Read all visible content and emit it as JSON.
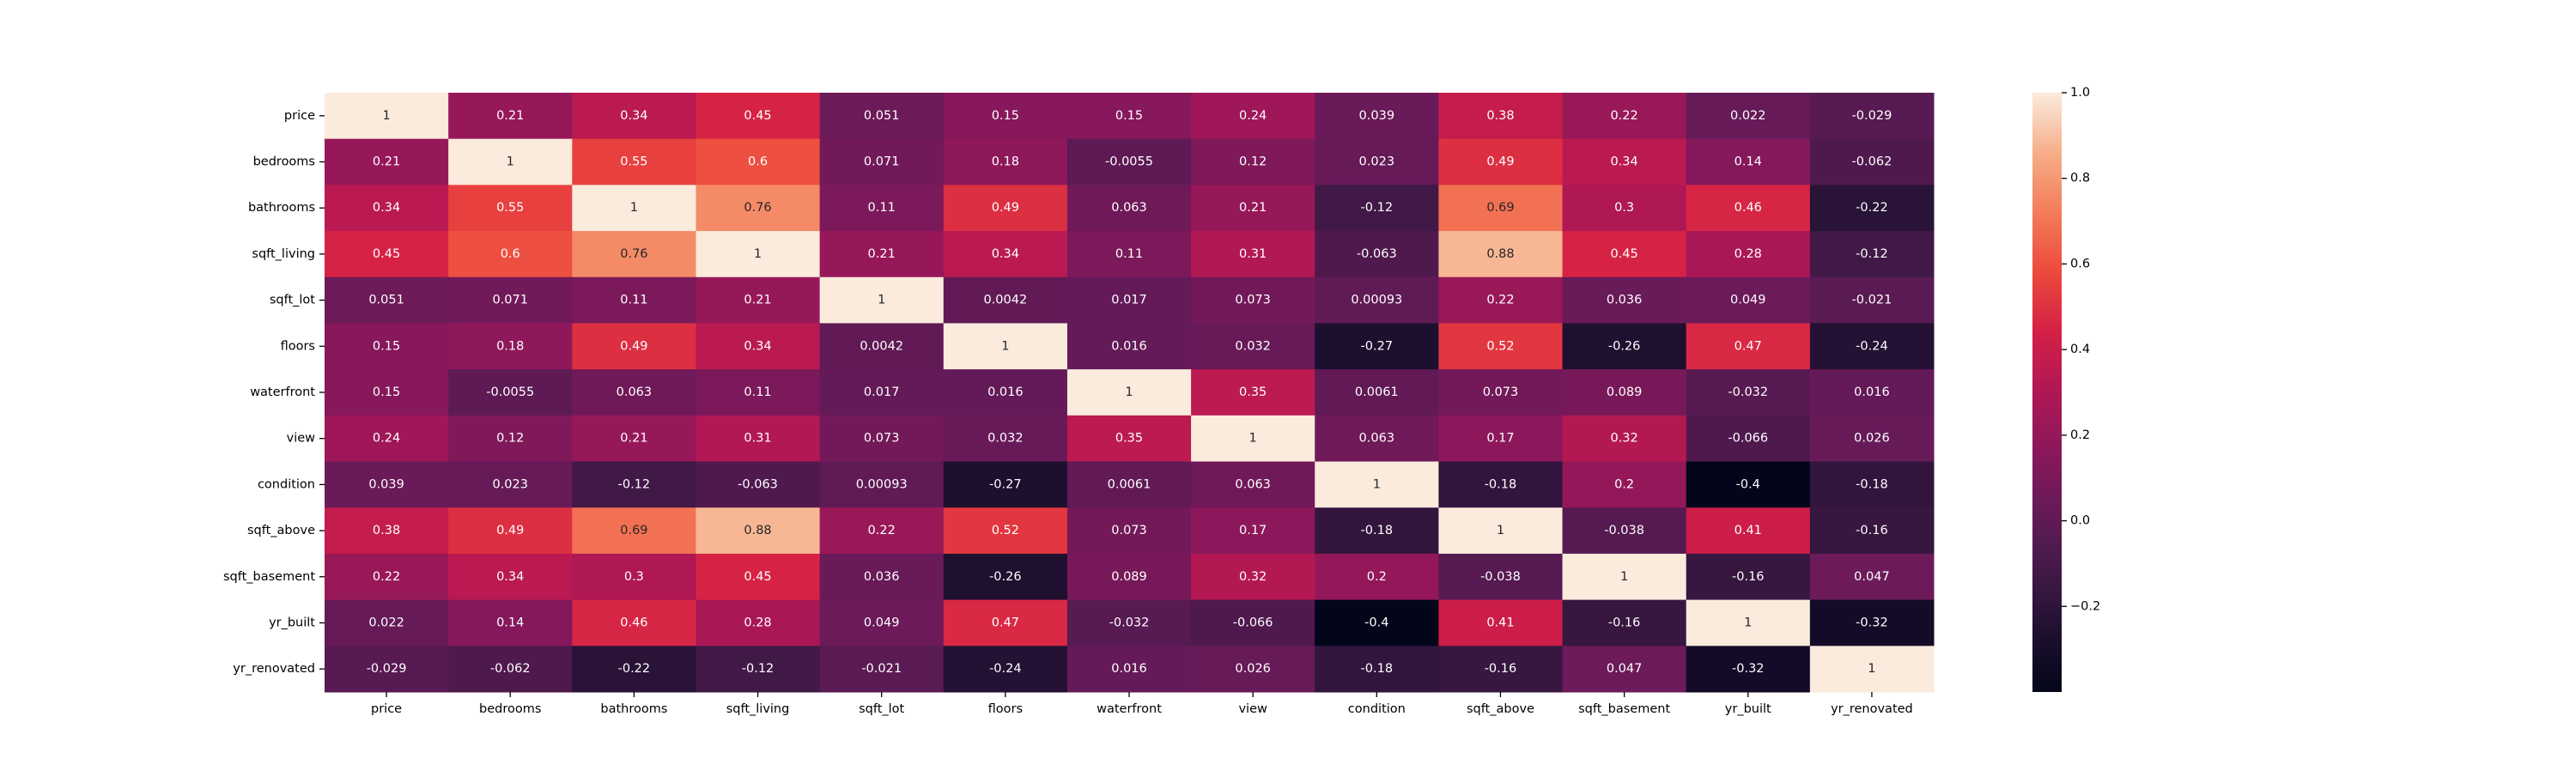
{
  "chart_data": {
    "type": "heatmap",
    "title": "",
    "xlabel": "",
    "ylabel": "",
    "colormap": "rocket",
    "x_labels": [
      "price",
      "bedrooms",
      "bathrooms",
      "sqft_living",
      "sqft_lot",
      "floors",
      "waterfront",
      "view",
      "condition",
      "sqft_above",
      "sqft_basement",
      "yr_built",
      "yr_renovated"
    ],
    "y_labels": [
      "price",
      "bedrooms",
      "bathrooms",
      "sqft_living",
      "sqft_lot",
      "floors",
      "waterfront",
      "view",
      "condition",
      "sqft_above",
      "sqft_basement",
      "yr_built",
      "yr_renovated"
    ],
    "values": [
      [
        1,
        0.21,
        0.34,
        0.45,
        0.051,
        0.15,
        0.15,
        0.24,
        0.039,
        0.38,
        0.22,
        0.022,
        -0.029
      ],
      [
        0.21,
        1,
        0.55,
        0.6,
        0.071,
        0.18,
        -0.0055,
        0.12,
        0.023,
        0.49,
        0.34,
        0.14,
        -0.062
      ],
      [
        0.34,
        0.55,
        1,
        0.76,
        0.11,
        0.49,
        0.063,
        0.21,
        -0.12,
        0.69,
        0.3,
        0.46,
        -0.22
      ],
      [
        0.45,
        0.6,
        0.76,
        1,
        0.21,
        0.34,
        0.11,
        0.31,
        -0.063,
        0.88,
        0.45,
        0.28,
        -0.12
      ],
      [
        0.051,
        0.071,
        0.11,
        0.21,
        1,
        0.0042,
        0.017,
        0.073,
        0.00093,
        0.22,
        0.036,
        0.049,
        -0.021
      ],
      [
        0.15,
        0.18,
        0.49,
        0.34,
        0.0042,
        1,
        0.016,
        0.032,
        -0.27,
        0.52,
        -0.26,
        0.47,
        -0.24
      ],
      [
        0.15,
        -0.0055,
        0.063,
        0.11,
        0.017,
        0.016,
        1,
        0.35,
        0.0061,
        0.073,
        0.089,
        -0.032,
        0.016
      ],
      [
        0.24,
        0.12,
        0.21,
        0.31,
        0.073,
        0.032,
        0.35,
        1,
        0.063,
        0.17,
        0.32,
        -0.066,
        0.026
      ],
      [
        0.039,
        0.023,
        -0.12,
        -0.063,
        0.00093,
        -0.27,
        0.0061,
        0.063,
        1,
        -0.18,
        0.2,
        -0.4,
        -0.18
      ],
      [
        0.38,
        0.49,
        0.69,
        0.88,
        0.22,
        0.52,
        0.073,
        0.17,
        -0.18,
        1,
        -0.038,
        0.41,
        -0.16
      ],
      [
        0.22,
        0.34,
        0.3,
        0.45,
        0.036,
        -0.26,
        0.089,
        0.32,
        0.2,
        -0.038,
        1,
        -0.16,
        0.047
      ],
      [
        0.022,
        0.14,
        0.46,
        0.28,
        0.049,
        0.47,
        -0.032,
        -0.066,
        -0.4,
        0.41,
        -0.16,
        1,
        -0.32
      ],
      [
        -0.029,
        -0.062,
        -0.22,
        -0.12,
        -0.021,
        -0.24,
        0.016,
        0.026,
        -0.18,
        -0.16,
        0.047,
        -0.32,
        1
      ]
    ],
    "value_labels": [
      [
        "1",
        "0.21",
        "0.34",
        "0.45",
        "0.051",
        "0.15",
        "0.15",
        "0.24",
        "0.039",
        "0.38",
        "0.22",
        "0.022",
        "-0.029"
      ],
      [
        "0.21",
        "1",
        "0.55",
        "0.6",
        "0.071",
        "0.18",
        "-0.0055",
        "0.12",
        "0.023",
        "0.49",
        "0.34",
        "0.14",
        "-0.062"
      ],
      [
        "0.34",
        "0.55",
        "1",
        "0.76",
        "0.11",
        "0.49",
        "0.063",
        "0.21",
        "-0.12",
        "0.69",
        "0.3",
        "0.46",
        "-0.22"
      ],
      [
        "0.45",
        "0.6",
        "0.76",
        "1",
        "0.21",
        "0.34",
        "0.11",
        "0.31",
        "-0.063",
        "0.88",
        "0.45",
        "0.28",
        "-0.12"
      ],
      [
        "0.051",
        "0.071",
        "0.11",
        "0.21",
        "1",
        "0.0042",
        "0.017",
        "0.073",
        "0.00093",
        "0.22",
        "0.036",
        "0.049",
        "-0.021"
      ],
      [
        "0.15",
        "0.18",
        "0.49",
        "0.34",
        "0.0042",
        "1",
        "0.016",
        "0.032",
        "-0.27",
        "0.52",
        "-0.26",
        "0.47",
        "-0.24"
      ],
      [
        "0.15",
        "-0.0055",
        "0.063",
        "0.11",
        "0.017",
        "0.016",
        "1",
        "0.35",
        "0.0061",
        "0.073",
        "0.089",
        "-0.032",
        "0.016"
      ],
      [
        "0.24",
        "0.12",
        "0.21",
        "0.31",
        "0.073",
        "0.032",
        "0.35",
        "1",
        "0.063",
        "0.17",
        "0.32",
        "-0.066",
        "0.026"
      ],
      [
        "0.039",
        "0.023",
        "-0.12",
        "-0.063",
        "0.00093",
        "-0.27",
        "0.0061",
        "0.063",
        "1",
        "-0.18",
        "0.2",
        "-0.4",
        "-0.18"
      ],
      [
        "0.38",
        "0.49",
        "0.69",
        "0.88",
        "0.22",
        "0.52",
        "0.073",
        "0.17",
        "-0.18",
        "1",
        "-0.038",
        "0.41",
        "-0.16"
      ],
      [
        "0.22",
        "0.34",
        "0.3",
        "0.45",
        "0.036",
        "-0.26",
        "0.089",
        "0.32",
        "0.2",
        "-0.038",
        "1",
        "-0.16",
        "0.047"
      ],
      [
        "0.022",
        "0.14",
        "0.46",
        "0.28",
        "0.049",
        "0.47",
        "-0.032",
        "-0.066",
        "-0.4",
        "0.41",
        "-0.16",
        "1",
        "-0.32"
      ],
      [
        "-0.029",
        "-0.062",
        "-0.22",
        "-0.12",
        "-0.021",
        "-0.24",
        "0.016",
        "0.026",
        "-0.18",
        "-0.16",
        "0.047",
        "-0.32",
        "1"
      ]
    ],
    "vmin": -0.4,
    "vmax": 1.0,
    "colorbar": {
      "ticks": [
        1.0,
        0.8,
        0.6,
        0.4,
        0.2,
        0.0,
        -0.2
      ],
      "tick_labels": [
        "1.0",
        "0.8",
        "0.6",
        "0.4",
        "0.2",
        "0.0",
        "−0.2"
      ]
    },
    "grid": false,
    "legend": "colorbar-right"
  }
}
